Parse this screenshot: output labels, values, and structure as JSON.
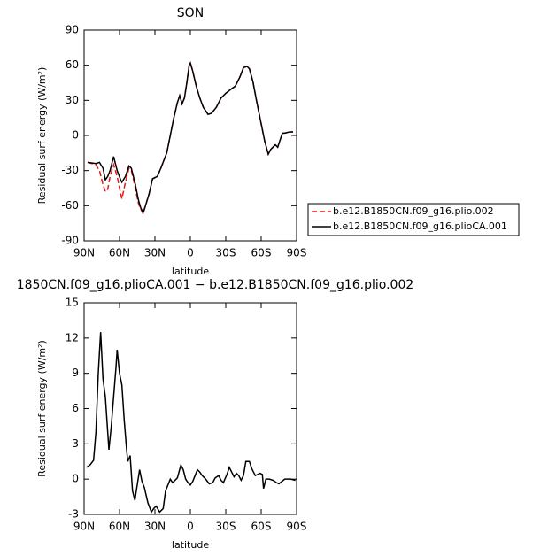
{
  "chart_data": [
    {
      "type": "line",
      "title": "SON",
      "xlabel": "latitude",
      "ylabel": "Residual surf energy (W/m²)",
      "xlim": [
        90,
        -90
      ],
      "ylim": [
        -90,
        90
      ],
      "xticks": [
        {
          "value": 90,
          "label": "90N"
        },
        {
          "value": 60,
          "label": "60N"
        },
        {
          "value": 30,
          "label": "30N"
        },
        0,
        {
          "value": -30,
          "label": "30S"
        },
        {
          "value": -60,
          "label": "60S"
        },
        {
          "value": -90,
          "label": "90S"
        }
      ],
      "yticks": [
        -90,
        -60,
        -30,
        0,
        30,
        60,
        90
      ],
      "x": [
        87,
        80,
        77,
        74,
        72,
        70,
        68,
        65,
        62,
        59,
        58,
        55,
        52,
        50,
        47,
        44,
        42,
        40,
        38,
        35,
        32,
        28,
        25,
        20,
        17,
        14,
        11,
        9,
        7,
        5,
        3,
        1,
        0,
        -2,
        -5,
        -8,
        -11,
        -15,
        -18,
        -22,
        -26,
        -30,
        -35,
        -38,
        -42,
        -45,
        -48,
        -50,
        -53,
        -56,
        -60,
        -63,
        -66,
        -68,
        -72,
        -74,
        -76,
        -78,
        -80,
        -84,
        -87
      ],
      "series": [
        {
          "name": "b.e12.B1850CN.f09_g16.plio.002",
          "color": "#e41a1c",
          "linestyle": "dashed",
          "values": [
            -23,
            -25,
            -30,
            -42,
            -48,
            -46,
            -35,
            -25,
            -35,
            -50,
            -54,
            -40,
            -28,
            -30,
            -43,
            -58,
            -63,
            -67,
            -60,
            -50,
            -37,
            -35,
            -28,
            -15,
            0,
            15,
            28,
            34,
            27,
            32,
            45,
            60,
            62,
            55,
            42,
            32,
            24,
            18,
            19,
            24,
            32,
            36,
            40,
            42,
            50,
            58,
            59,
            57,
            46,
            30,
            10,
            -5,
            -16,
            -12,
            -8,
            -10,
            -4,
            2,
            2,
            3,
            3
          ]
        },
        {
          "name": "b.e12.B1850CN.f09_g16.plioCA.001",
          "color": "#000000",
          "linestyle": "solid",
          "values": [
            -23,
            -24,
            -23,
            -28,
            -38,
            -35,
            -30,
            -18,
            -30,
            -38,
            -40,
            -35,
            -26,
            -28,
            -40,
            -55,
            -62,
            -66,
            -60,
            -50,
            -37,
            -35,
            -28,
            -15,
            0,
            15,
            28,
            34,
            27,
            32,
            45,
            60,
            62,
            55,
            42,
            32,
            24,
            18,
            19,
            24,
            32,
            36,
            40,
            42,
            50,
            58,
            59,
            57,
            46,
            30,
            10,
            -5,
            -16,
            -12,
            -8,
            -10,
            -4,
            2,
            2,
            3,
            3
          ]
        }
      ]
    },
    {
      "type": "line",
      "title": "1850CN.f09_g16.plioCA.001 − b.e12.B1850CN.f09_g16.plio.002",
      "xlabel": "latitude",
      "ylabel": "Residual surf energy (W/m²)",
      "xlim": [
        90,
        -90
      ],
      "ylim": [
        -3,
        15
      ],
      "xticks": [
        {
          "value": 90,
          "label": "90N"
        },
        {
          "value": 60,
          "label": "60N"
        },
        {
          "value": 30,
          "label": "30N"
        },
        0,
        {
          "value": -30,
          "label": "30S"
        },
        {
          "value": -60,
          "label": "60S"
        },
        {
          "value": -90,
          "label": "90S"
        }
      ],
      "yticks": [
        -3,
        0,
        3,
        6,
        9,
        12,
        15
      ],
      "x": [
        88,
        85,
        82,
        80,
        78,
        76,
        74,
        72,
        70,
        69,
        67,
        65,
        63,
        62,
        60,
        58,
        56,
        54,
        53,
        51,
        49,
        47,
        45,
        43,
        41,
        39,
        36,
        33,
        31,
        29,
        26,
        23,
        21,
        19,
        17,
        15,
        13,
        11,
        8,
        6,
        4,
        2,
        0,
        -2,
        -4,
        -6,
        -8,
        -10,
        -13,
        -16,
        -19,
        -21,
        -24,
        -26,
        -28,
        -31,
        -33,
        -35,
        -37,
        -39,
        -41,
        -43,
        -45,
        -47,
        -50,
        -52,
        -55,
        -57,
        -59,
        -61,
        -62,
        -64,
        -67,
        -70,
        -73,
        -75,
        -80,
        -85,
        -89
      ],
      "color": "#000000",
      "values": [
        1.0,
        1.2,
        1.6,
        4,
        9,
        12.5,
        8.5,
        7,
        4,
        2.5,
        4.5,
        7,
        9.5,
        11,
        9,
        8,
        5,
        2.5,
        1.5,
        2,
        -1,
        -1.8,
        -0.5,
        0.8,
        -0.2,
        -0.7,
        -2,
        -2.8,
        -2.5,
        -2.3,
        -2.8,
        -2.5,
        -1,
        -0.5,
        0,
        -0.3,
        -0.1,
        0.1,
        1.2,
        0.8,
        0,
        -0.3,
        -0.5,
        -0.2,
        0.3,
        0.8,
        0.6,
        0.3,
        0,
        -0.4,
        -0.3,
        0.1,
        0.3,
        -0.1,
        -0.3,
        0.4,
        1.0,
        0.6,
        0.2,
        0.5,
        0.3,
        -0.1,
        0.3,
        1.5,
        1.5,
        0.9,
        0.3,
        0.4,
        0.5,
        0.4,
        -0.8,
        0,
        0,
        -0.1,
        -0.3,
        -0.4,
        0,
        0,
        -0.1
      ]
    }
  ]
}
